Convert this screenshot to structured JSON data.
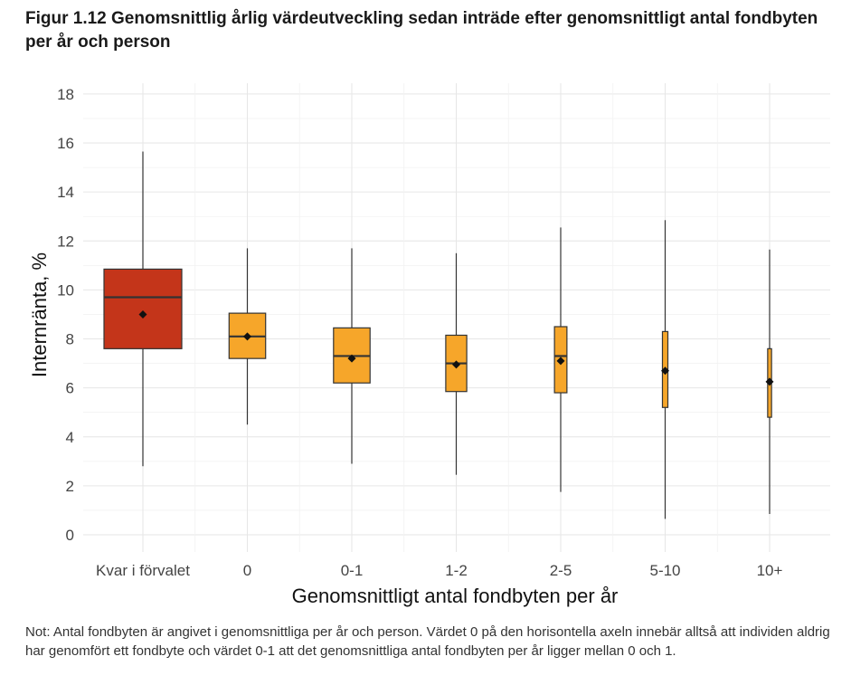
{
  "title": "Figur 1.12 Genomsnittlig årlig värdeutveckling sedan inträde efter genomsnittligt antal fondbyten per år och person",
  "note": "Not: Antal fondbyten är angivet i genomsnittliga per år och person. Värdet 0 på den horisontella axeln innebär alltså att individen aldrig har genomfört ett fondbyte och värdet 0-1 att det genomsnittliga antal fondbyten per år ligger mellan 0 och 1.",
  "chart_data": {
    "type": "boxplot",
    "xlabel": "Genomsnittligt antal fondbyten per år",
    "ylabel": "Internränta, %",
    "ylim": [
      0,
      18
    ],
    "yticks": [
      0,
      2,
      4,
      6,
      8,
      10,
      12,
      14,
      16,
      18
    ],
    "grid": true,
    "colors": {
      "first": "#c4351a",
      "rest": "#f6a62a",
      "line": "#333333",
      "mean": "#111111"
    },
    "categories": [
      "Kvar i förvalet",
      "0",
      "0-1",
      "1-2",
      "2-5",
      "5-10",
      "10+"
    ],
    "relative_box_width": [
      1.0,
      0.47,
      0.47,
      0.27,
      0.16,
      0.07,
      0.05
    ],
    "boxes": [
      {
        "whisker_low": 2.8,
        "q1": 7.6,
        "median": 9.7,
        "q3": 10.85,
        "whisker_high": 15.65,
        "mean": 9.0
      },
      {
        "whisker_low": 4.5,
        "q1": 7.2,
        "median": 8.1,
        "q3": 9.05,
        "whisker_high": 11.7,
        "mean": 8.1
      },
      {
        "whisker_low": 2.9,
        "q1": 6.2,
        "median": 7.3,
        "q3": 8.45,
        "whisker_high": 11.7,
        "mean": 7.2
      },
      {
        "whisker_low": 2.45,
        "q1": 5.85,
        "median": 7.0,
        "q3": 8.15,
        "whisker_high": 11.5,
        "mean": 6.95
      },
      {
        "whisker_low": 1.75,
        "q1": 5.8,
        "median": 7.3,
        "q3": 8.5,
        "whisker_high": 12.55,
        "mean": 7.1
      },
      {
        "whisker_low": 0.65,
        "q1": 5.2,
        "median": 6.7,
        "q3": 8.3,
        "whisker_high": 12.85,
        "mean": 6.7
      },
      {
        "whisker_low": 0.85,
        "q1": 4.8,
        "median": 6.25,
        "q3": 7.6,
        "whisker_high": 11.65,
        "mean": 6.25
      }
    ]
  }
}
